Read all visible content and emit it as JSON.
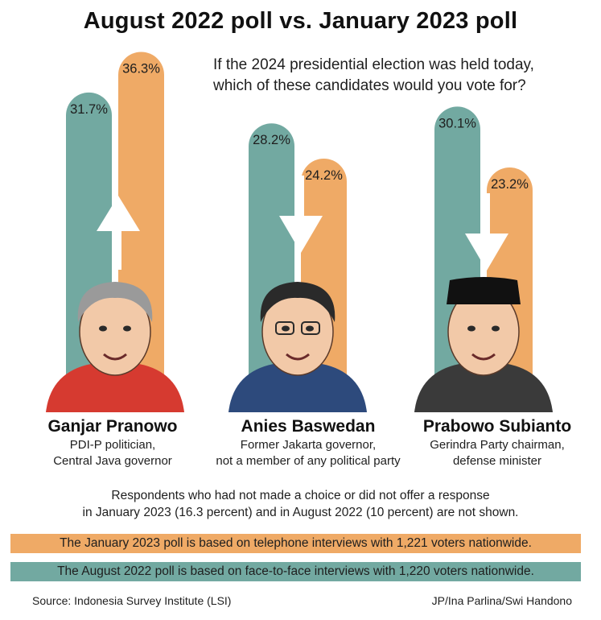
{
  "title": "August 2022 poll vs. January 2023 poll",
  "chart_data": {
    "type": "bar",
    "question": "If the 2024 presidential election was held today, which of these candidates would you vote for?",
    "categories": [
      "Ganjar Pranowo",
      "Anies Baswedan",
      "Prabowo Subianto"
    ],
    "series": [
      {
        "name": "August 2022",
        "values": [
          31.7,
          28.2,
          30.1
        ],
        "labels": [
          "31.7%",
          "28.2%",
          "30.1%"
        ],
        "color": "#72a9a1"
      },
      {
        "name": "January 2023",
        "values": [
          36.3,
          24.2,
          23.2
        ],
        "labels": [
          "36.3%",
          "24.2%",
          "23.2%"
        ],
        "color": "#efaa66"
      }
    ],
    "trend": [
      "up",
      "down",
      "down"
    ],
    "unit": "percent"
  },
  "candidates": [
    {
      "name": "Ganjar Pranowo",
      "desc1": "PDI-P politician,",
      "desc2": "Central Java governor"
    },
    {
      "name": "Anies Baswedan",
      "desc1": "Former Jakarta governor,",
      "desc2": "not a member of any political party"
    },
    {
      "name": "Prabowo Subianto",
      "desc1": "Gerindra Party chairman,",
      "desc2": "defense minister"
    }
  ],
  "note": {
    "line1": "Respondents who had not made a choice or did not offer a response",
    "line2": "in January 2023 (16.3 percent) and in August 2022 (10 percent) are not shown."
  },
  "legend": {
    "january": "The January 2023 poll is based on telephone interviews with 1,221 voters nationwide.",
    "august": "The August 2022 poll is based on face-to-face interviews with 1,220 voters nationwide."
  },
  "colors": {
    "teal": "#72a9a1",
    "orange": "#efaa66"
  },
  "source": "Source: Indonesia Survey Institute (LSI)",
  "credit": "JP/Ina Parlina/Swi Handono"
}
